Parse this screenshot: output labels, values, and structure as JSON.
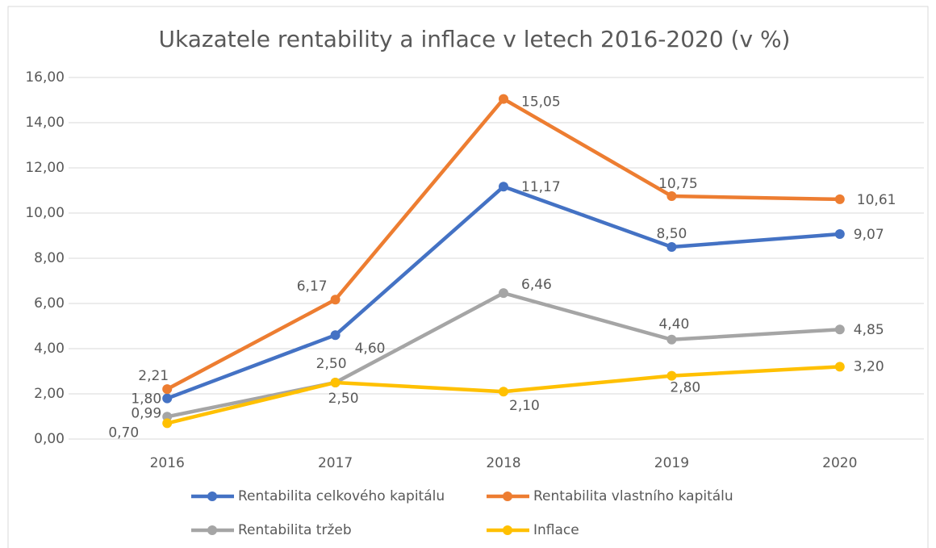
{
  "chart_data": {
    "type": "line",
    "title": "Ukazatele rentability a inflace v letech 2016-2020 (v %)",
    "categories": [
      "2016",
      "2017",
      "2018",
      "2019",
      "2020"
    ],
    "ylim": [
      0,
      16
    ],
    "yticks": [
      {
        "value": 0,
        "label": "0,00"
      },
      {
        "value": 2,
        "label": "2,00"
      },
      {
        "value": 4,
        "label": "4,00"
      },
      {
        "value": 6,
        "label": "6,00"
      },
      {
        "value": 8,
        "label": "8,00"
      },
      {
        "value": 10,
        "label": "10,00"
      },
      {
        "value": 12,
        "label": "12,00"
      },
      {
        "value": 14,
        "label": "14,00"
      },
      {
        "value": 16,
        "label": "16,00"
      }
    ],
    "grid": true,
    "legend": "bottom",
    "series": [
      {
        "name": "Rentabilita celkového kapitálu",
        "color": "#4472c4",
        "values": [
          1.8,
          4.6,
          11.17,
          8.5,
          9.07
        ],
        "value_labels": [
          "1,80",
          "4,60",
          "11,17",
          "8,50",
          "9,07"
        ]
      },
      {
        "name": "Rentabilita vlastního kapitálu",
        "color": "#ed7d31",
        "values": [
          2.21,
          6.17,
          15.05,
          10.75,
          10.61
        ],
        "value_labels": [
          "2,21",
          "6,17",
          "15,05",
          "10,75",
          "10,61"
        ]
      },
      {
        "name": "Rentabilita tržeb",
        "color": "#a5a5a5",
        "values": [
          0.99,
          2.5,
          6.46,
          4.4,
          4.85
        ],
        "value_labels": [
          "0,99",
          "2,50",
          "6,46",
          "4,40",
          "4,85"
        ]
      },
      {
        "name": "Inflace",
        "color": "#ffc000",
        "values": [
          0.7,
          2.5,
          2.1,
          2.8,
          3.2
        ],
        "value_labels": [
          "0,70",
          "2,50",
          "2,10",
          "2,80",
          "3,20"
        ]
      }
    ]
  }
}
